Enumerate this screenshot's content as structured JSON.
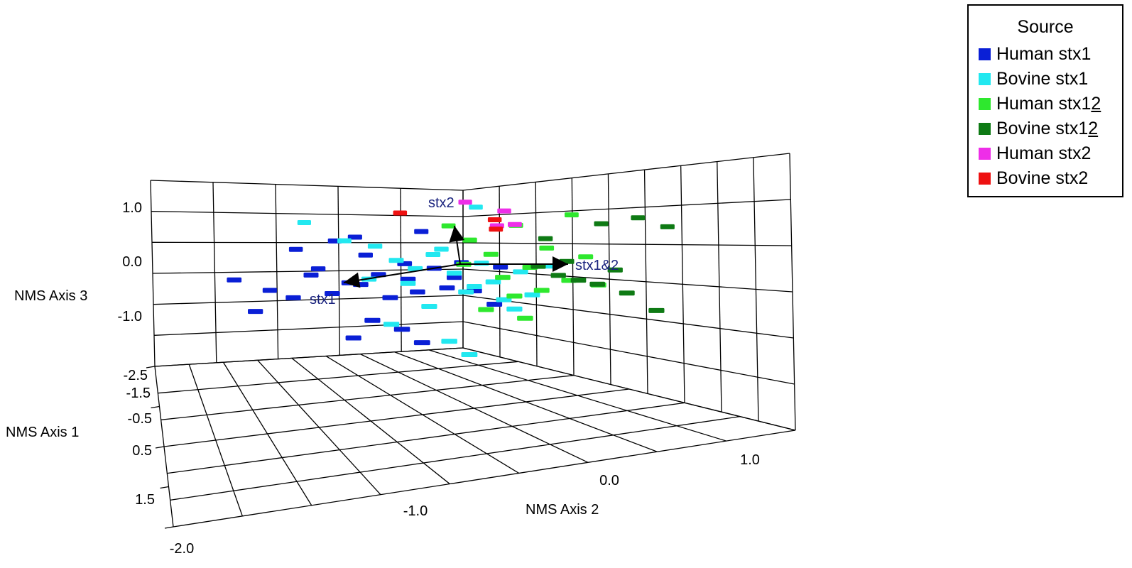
{
  "chart_data": {
    "type": "scatter",
    "subtype": "3d-ordination",
    "axes": {
      "axis3": {
        "label": "NMS Axis 3",
        "ticks": [
          "1.0",
          "0.0",
          "-1.0",
          "-2.5"
        ]
      },
      "axis1": {
        "label": "NMS Axis 1",
        "ticks": [
          "-1.5",
          "-0.5",
          "0.5",
          "1.5"
        ]
      },
      "axis2": {
        "label": "NMS Axis 2",
        "ticks": [
          "-2.0",
          "-1.0",
          "0.0",
          "1.0"
        ]
      }
    },
    "legend": {
      "title": "Source",
      "placement": "top-right",
      "entries": [
        {
          "name": "Human stx1",
          "base": "Human stx1",
          "underline": "",
          "color": "#0a1fd6"
        },
        {
          "name": "Bovine stx1",
          "base": "Bovine stx1",
          "underline": "",
          "color": "#22e8f0"
        },
        {
          "name": "Human stx12",
          "base": "Human stx1",
          "underline": "2",
          "color": "#2ee82e"
        },
        {
          "name": "Bovine stx12",
          "base": "Bovine stx1",
          "underline": "2",
          "color": "#0e7a14"
        },
        {
          "name": "Human stx2",
          "base": "Human stx2",
          "underline": "",
          "color": "#ee2ee8"
        },
        {
          "name": "Bovine stx2",
          "base": "Bovine stx2",
          "underline": "",
          "color": "#ee1111"
        }
      ]
    },
    "vectors": [
      {
        "label": "stx2",
        "direction": "axis3+"
      },
      {
        "label": "stx1",
        "direction": "axis2-"
      },
      {
        "label": "stx1&2",
        "direction": "axis2+"
      }
    ],
    "series": [
      {
        "name": "Human stx1",
        "points": [
          [
            -0.1,
            -2.0,
            -0.2
          ],
          [
            0.1,
            -1.8,
            -0.9
          ],
          [
            -0.3,
            -1.6,
            -0.5
          ],
          [
            -0.5,
            -1.3,
            0.4
          ],
          [
            -0.2,
            -1.1,
            0.0
          ],
          [
            0.0,
            -1.2,
            -0.1
          ],
          [
            0.2,
            -1.0,
            -0.5
          ],
          [
            -0.4,
            -0.9,
            0.6
          ],
          [
            -0.3,
            -0.7,
            0.7
          ],
          [
            0.0,
            -0.8,
            -0.3
          ],
          [
            0.2,
            -0.7,
            -0.3
          ],
          [
            0.4,
            -0.6,
            -1.1
          ],
          [
            -0.2,
            -0.6,
            0.3
          ],
          [
            0.1,
            -0.5,
            -0.1
          ],
          [
            0.3,
            -0.4,
            -0.6
          ],
          [
            0.5,
            -0.3,
            -1.3
          ],
          [
            -0.1,
            -0.2,
            0.1
          ],
          [
            0.2,
            -0.1,
            -0.5
          ],
          [
            -0.3,
            0.0,
            0.8
          ],
          [
            0.0,
            0.1,
            0.0
          ],
          [
            0.3,
            0.2,
            -0.4
          ],
          [
            0.1,
            0.3,
            -0.2
          ],
          [
            -0.1,
            0.4,
            0.1
          ],
          [
            0.2,
            0.5,
            -0.5
          ],
          [
            0.3,
            0.7,
            -0.8
          ],
          [
            0.0,
            0.8,
            0.0
          ],
          [
            0.6,
            -0.1,
            -1.6
          ],
          [
            0.2,
            -0.2,
            -0.2
          ],
          [
            0.1,
            -1.4,
            -0.6
          ],
          [
            0.4,
            -0.8,
            -1.5
          ]
        ]
      },
      {
        "name": "Bovine stx1",
        "points": [
          [
            -0.6,
            -1.2,
            1.0
          ],
          [
            -0.4,
            -0.8,
            0.6
          ],
          [
            -0.2,
            -0.5,
            0.5
          ],
          [
            0.0,
            -0.3,
            0.2
          ],
          [
            0.2,
            -0.2,
            -0.3
          ],
          [
            0.4,
            0.0,
            -0.8
          ],
          [
            -0.1,
            0.1,
            0.3
          ],
          [
            0.1,
            0.3,
            -0.1
          ],
          [
            0.3,
            0.4,
            -0.5
          ],
          [
            0.5,
            0.2,
            -1.6
          ],
          [
            -0.5,
            0.6,
            1.3
          ],
          [
            0.0,
            0.6,
            0.1
          ],
          [
            0.2,
            0.7,
            -0.3
          ],
          [
            0.4,
            0.9,
            -0.9
          ],
          [
            0.1,
            1.0,
            -0.1
          ],
          [
            0.3,
            1.1,
            -0.6
          ],
          [
            0.6,
            0.4,
            -1.9
          ],
          [
            -0.2,
            0.2,
            0.4
          ],
          [
            0.0,
            -0.1,
            0.0
          ],
          [
            0.2,
            0.5,
            -0.4
          ],
          [
            0.4,
            -0.4,
            -1.2
          ],
          [
            0.1,
            -0.6,
            -0.2
          ],
          [
            0.3,
            0.8,
            -0.7
          ],
          [
            0.0,
            1.3,
            0.0
          ]
        ]
      },
      {
        "name": "Human stx12",
        "points": [
          [
            -0.4,
            0.3,
            0.9
          ],
          [
            -0.2,
            0.5,
            0.6
          ],
          [
            0.0,
            0.7,
            0.3
          ],
          [
            0.2,
            0.8,
            -0.2
          ],
          [
            0.4,
            0.9,
            -0.6
          ],
          [
            -0.3,
            1.0,
            0.9
          ],
          [
            0.1,
            1.1,
            0.0
          ],
          [
            0.3,
            1.2,
            -0.5
          ],
          [
            0.5,
            1.0,
            -1.1
          ],
          [
            -0.1,
            1.3,
            0.4
          ],
          [
            0.2,
            1.5,
            -0.3
          ],
          [
            0.0,
            1.7,
            0.2
          ],
          [
            -0.4,
            1.6,
            1.1
          ],
          [
            0.3,
            1.8,
            -0.4
          ],
          [
            0.1,
            0.4,
            0.1
          ],
          [
            0.4,
            0.6,
            -0.9
          ]
        ]
      },
      {
        "name": "Bovine stx12",
        "points": [
          [
            -0.2,
            1.3,
            0.6
          ],
          [
            0.0,
            1.5,
            0.1
          ],
          [
            0.2,
            1.6,
            -0.3
          ],
          [
            -0.3,
            1.9,
            0.9
          ],
          [
            0.1,
            2.0,
            -0.1
          ],
          [
            -0.4,
            2.3,
            1.0
          ],
          [
            0.3,
            2.1,
            -0.6
          ],
          [
            0.0,
            1.2,
            0.0
          ],
          [
            0.2,
            1.8,
            -0.4
          ],
          [
            -0.3,
            2.6,
            0.8
          ],
          [
            0.4,
            2.4,
            -1.0
          ],
          [
            0.1,
            1.4,
            -0.2
          ]
        ]
      },
      {
        "name": "Human stx2",
        "points": [
          [
            -0.6,
            0.5,
            1.4
          ],
          [
            -0.5,
            0.9,
            1.2
          ],
          [
            -0.4,
            1.0,
            0.9
          ],
          [
            -0.3,
            0.8,
            0.9
          ]
        ]
      },
      {
        "name": "Bovine stx2",
        "points": [
          [
            -0.5,
            -0.2,
            1.2
          ],
          [
            -0.5,
            0.8,
            1.0
          ],
          [
            -0.4,
            0.8,
            0.8
          ]
        ]
      }
    ]
  }
}
